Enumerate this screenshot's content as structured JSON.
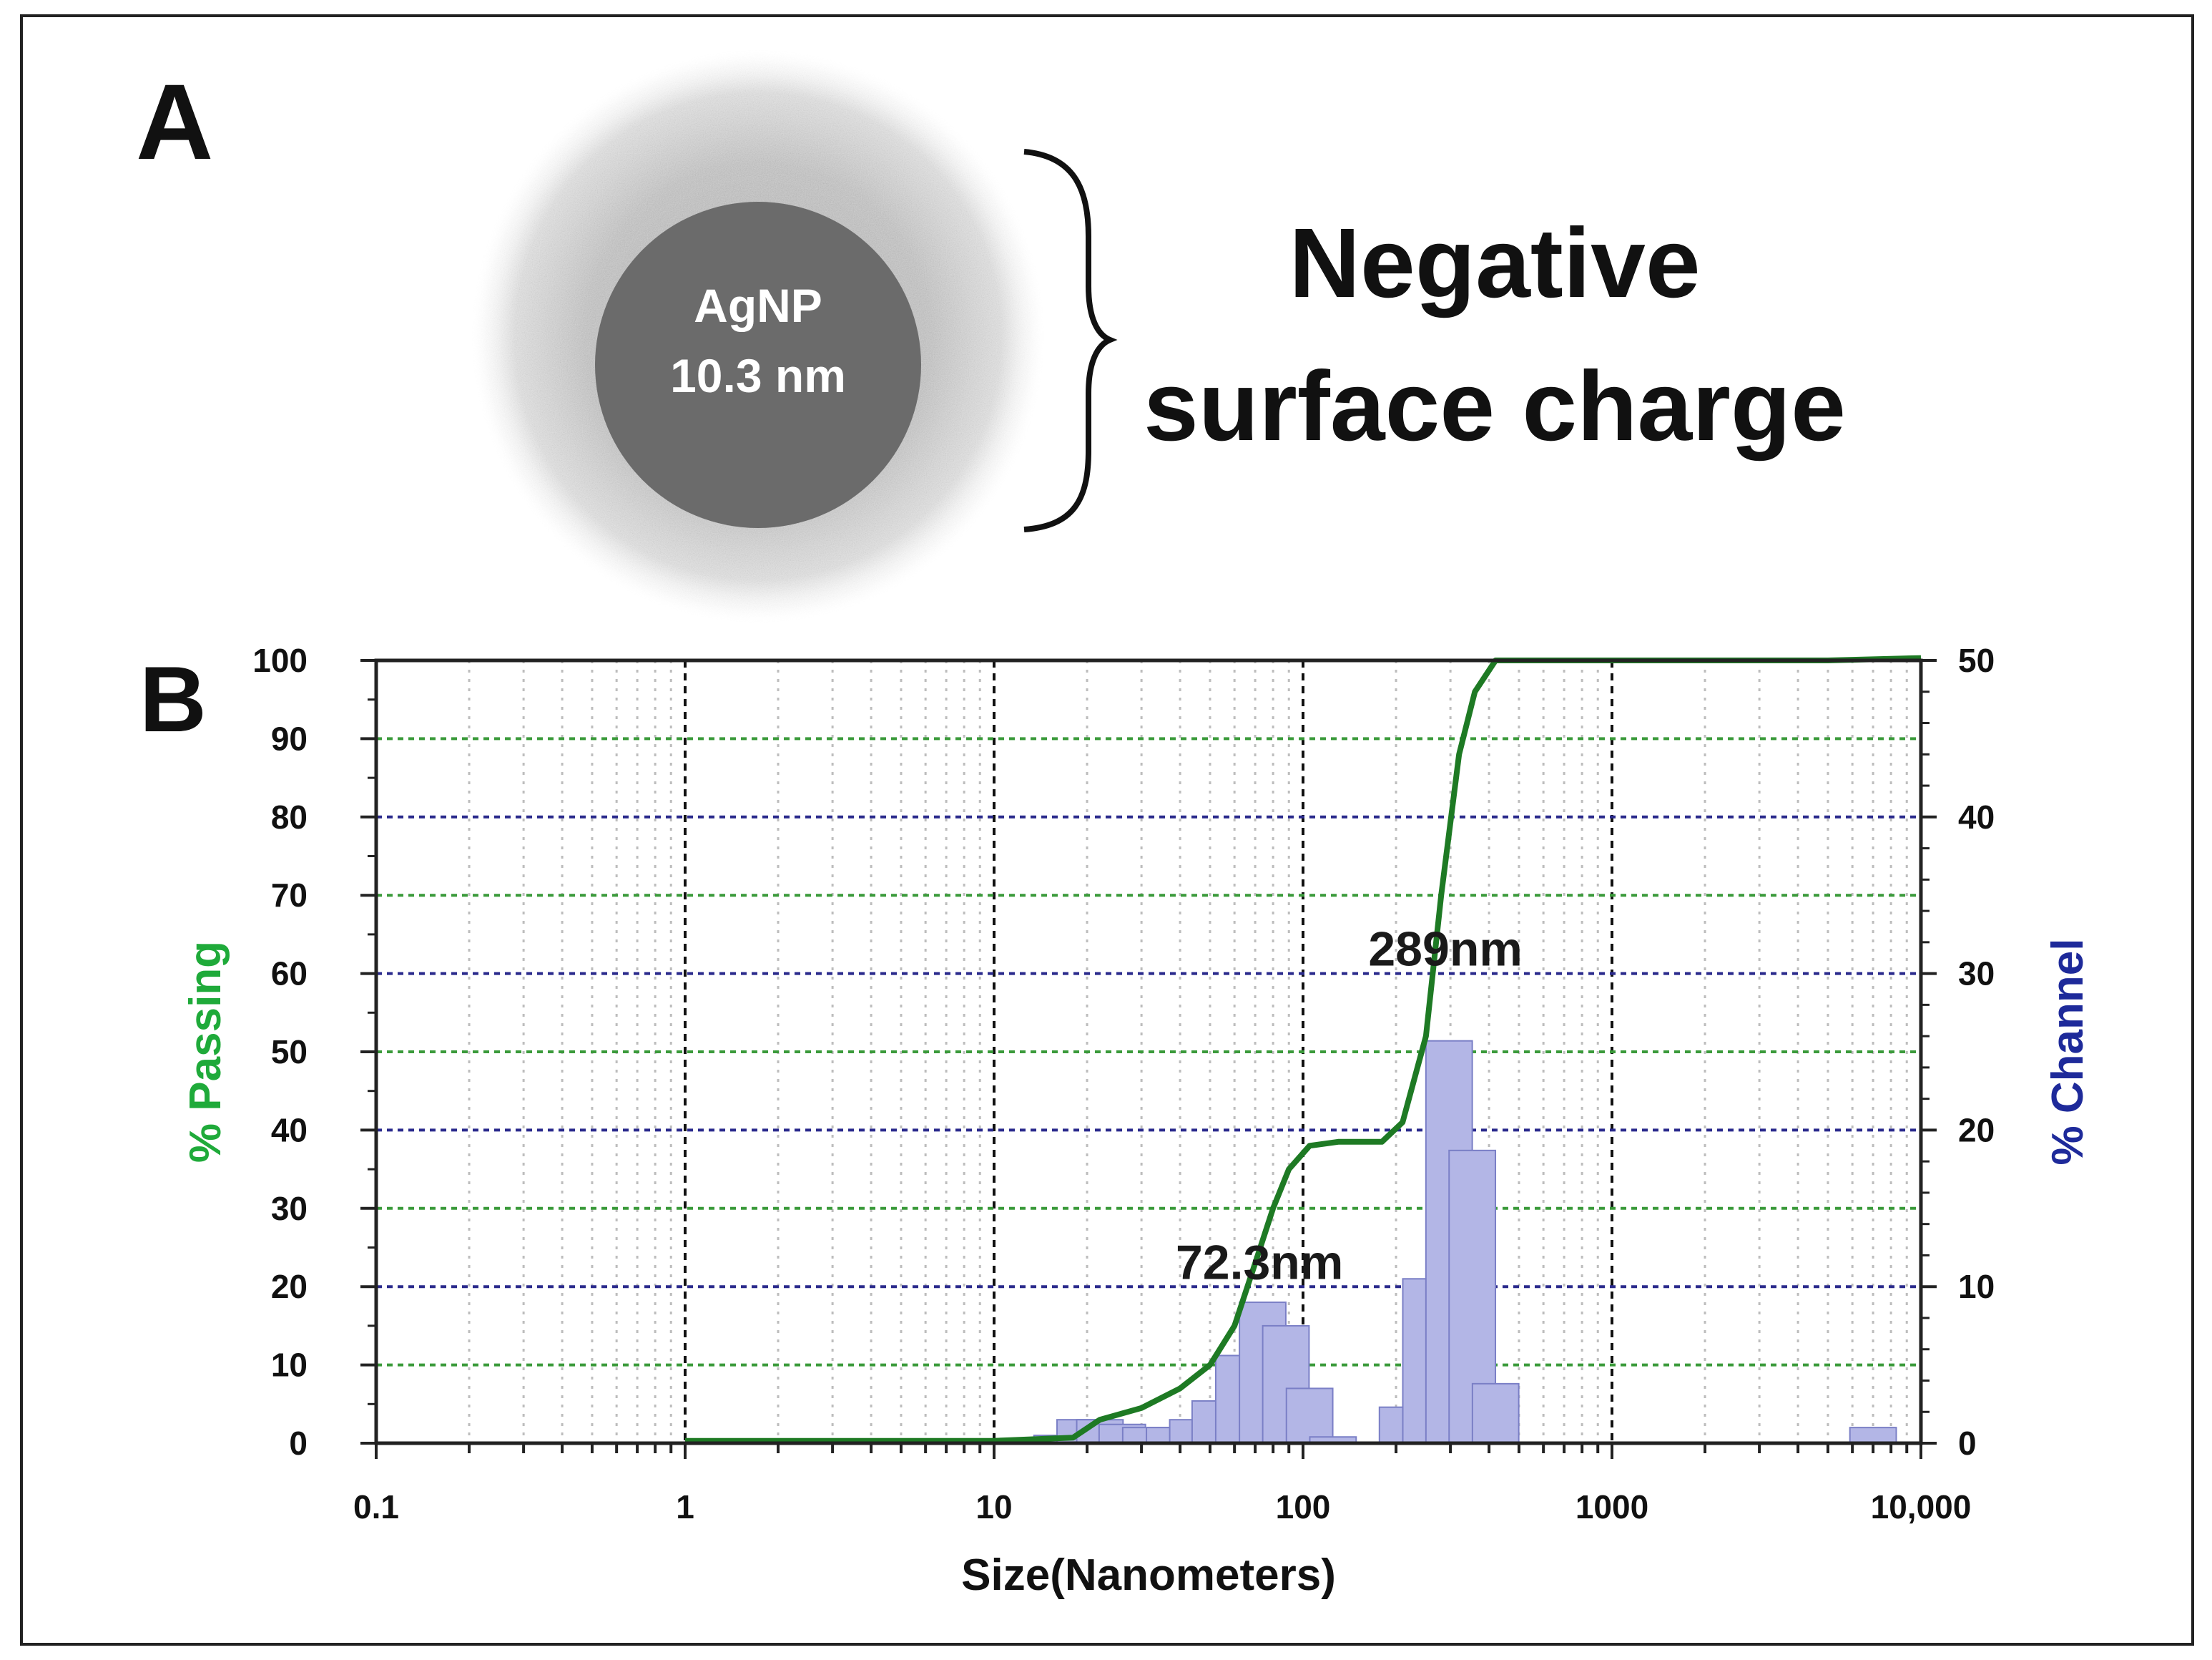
{
  "panel_a": {
    "label": "A",
    "particle_name": "AgNP",
    "particle_size": "10.3 nm",
    "charge_line1": "Negative",
    "charge_line2": "surface charge",
    "core_color": "#6b6b6b",
    "halo_color": "#c8c8c8"
  },
  "panel_b": {
    "label": "B"
  },
  "chart_data": {
    "type": "bar+line",
    "xlabel": "Size(Nanometers)",
    "ylabel_left": "% Passing",
    "ylabel_right": "% Channel",
    "xscale": "log",
    "xlim": [
      0.1,
      10000
    ],
    "ylim_left": [
      0,
      100
    ],
    "ylim_right": [
      0,
      50
    ],
    "x_ticks": [
      {
        "value": 0.1,
        "label": "0.1"
      },
      {
        "value": 1,
        "label": "1"
      },
      {
        "value": 10,
        "label": "10"
      },
      {
        "value": 100,
        "label": "100"
      },
      {
        "value": 1000,
        "label": "1000"
      },
      {
        "value": 10000,
        "label": "10,000"
      }
    ],
    "y_ticks_left": [
      {
        "value": 0,
        "label": "0"
      },
      {
        "value": 10,
        "label": "10"
      },
      {
        "value": 20,
        "label": "20"
      },
      {
        "value": 30,
        "label": "30"
      },
      {
        "value": 40,
        "label": "40"
      },
      {
        "value": 50,
        "label": "50"
      },
      {
        "value": 60,
        "label": "60"
      },
      {
        "value": 70,
        "label": "70"
      },
      {
        "value": 80,
        "label": "80"
      },
      {
        "value": 90,
        "label": "90"
      },
      {
        "value": 100,
        "label": "100"
      }
    ],
    "y_ticks_right": [
      {
        "value": 0,
        "label": "0"
      },
      {
        "value": 10,
        "label": "10"
      },
      {
        "value": 20,
        "label": "20"
      },
      {
        "value": 30,
        "label": "30"
      },
      {
        "value": 40,
        "label": "40"
      },
      {
        "value": 50,
        "label": "50"
      }
    ],
    "series": [
      {
        "name": "% Channel",
        "kind": "bar",
        "axis": "right",
        "color": "#b3b6e6",
        "edge_color": "#7a7fc6",
        "points": [
          {
            "x": 16,
            "y": 0.5
          },
          {
            "x": 19,
            "y": 1.5
          },
          {
            "x": 22,
            "y": 1.5
          },
          {
            "x": 26,
            "y": 1.2
          },
          {
            "x": 31,
            "y": 1.0
          },
          {
            "x": 37,
            "y": 1.0
          },
          {
            "x": 44,
            "y": 1.5
          },
          {
            "x": 52,
            "y": 2.7
          },
          {
            "x": 62,
            "y": 5.6
          },
          {
            "x": 74,
            "y": 9.0
          },
          {
            "x": 88,
            "y": 7.5
          },
          {
            "x": 105,
            "y": 3.5
          },
          {
            "x": 125,
            "y": 0.4
          },
          {
            "x": 210,
            "y": 2.3
          },
          {
            "x": 250,
            "y": 10.5
          },
          {
            "x": 297,
            "y": 25.7
          },
          {
            "x": 353,
            "y": 18.7
          },
          {
            "x": 420,
            "y": 3.8
          },
          {
            "x": 7000,
            "y": 1.0
          }
        ]
      },
      {
        "name": "% Passing",
        "kind": "line",
        "axis": "left",
        "color": "#1e7a24",
        "points": [
          {
            "x": 1,
            "y": 0.3
          },
          {
            "x": 10,
            "y": 0.3
          },
          {
            "x": 18,
            "y": 0.7
          },
          {
            "x": 22,
            "y": 3.0
          },
          {
            "x": 30,
            "y": 4.5
          },
          {
            "x": 40,
            "y": 7.0
          },
          {
            "x": 50,
            "y": 10.0
          },
          {
            "x": 60,
            "y": 15.0
          },
          {
            "x": 70,
            "y": 23.0
          },
          {
            "x": 80,
            "y": 30.0
          },
          {
            "x": 90,
            "y": 35.0
          },
          {
            "x": 105,
            "y": 38.0
          },
          {
            "x": 130,
            "y": 38.5
          },
          {
            "x": 180,
            "y": 38.5
          },
          {
            "x": 210,
            "y": 41.0
          },
          {
            "x": 250,
            "y": 52.0
          },
          {
            "x": 280,
            "y": 70.0
          },
          {
            "x": 320,
            "y": 88.0
          },
          {
            "x": 360,
            "y": 96.0
          },
          {
            "x": 420,
            "y": 100
          },
          {
            "x": 5000,
            "y": 100
          },
          {
            "x": 10000,
            "y": 100.3
          }
        ]
      }
    ],
    "annotations": [
      {
        "text": "72.3nm",
        "x": 72.3,
        "y": 10.5,
        "axis": "right"
      },
      {
        "text": "289nm",
        "x": 289,
        "y": 30.5,
        "axis": "right"
      }
    ]
  }
}
